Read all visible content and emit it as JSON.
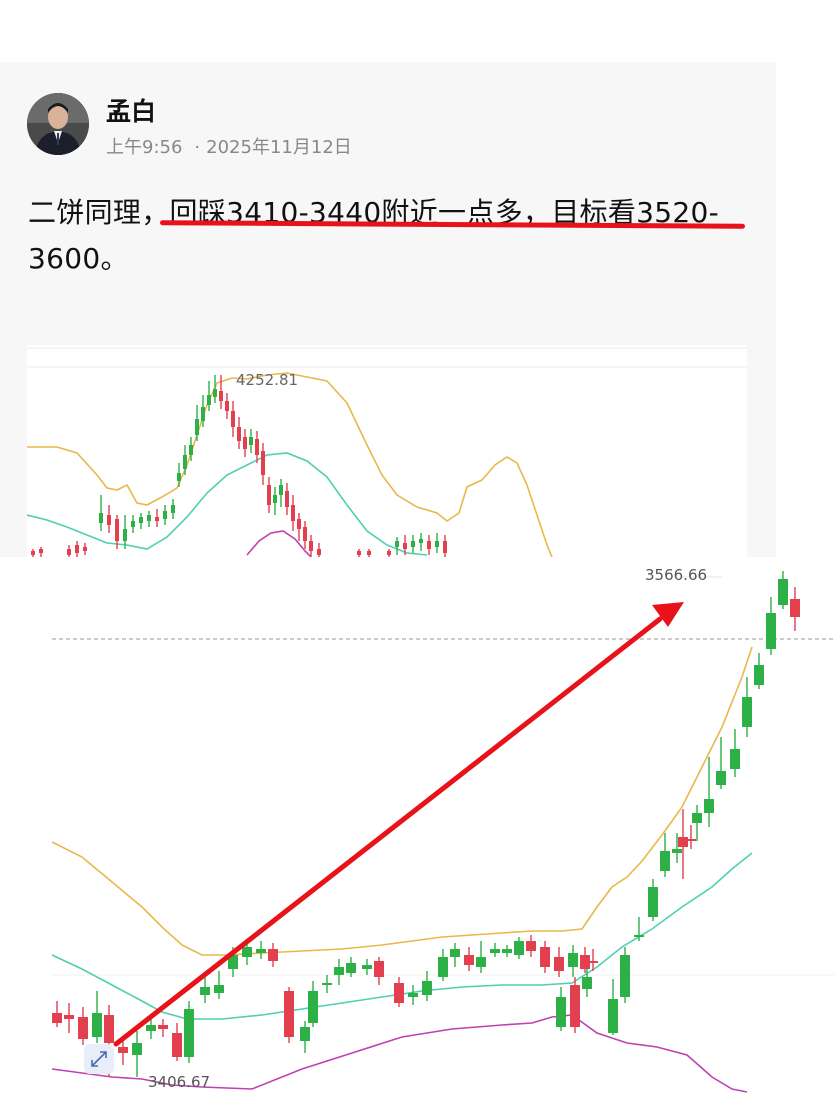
{
  "post": {
    "author": "孟白",
    "time": "上午9:56",
    "date": "2025年11月12日",
    "text_part1": "二饼同理，",
    "text_part2": "回踩3410-3440附近一点多，目标看3520-",
    "text_part3": "3600。"
  },
  "colors": {
    "up": "#2db046",
    "down": "#e2404f",
    "arrow": "#e8131a",
    "upper_band": "#e8b84a",
    "middle_band": "#4fcfb0",
    "lower_band": "#c040b0"
  },
  "chart_data": [
    {
      "type": "candlestick",
      "name": "upper-chart",
      "annotations": [
        "4252.81"
      ],
      "indicator_lines": [
        "upper band",
        "middle band",
        "lower band"
      ]
    },
    {
      "type": "candlestick",
      "name": "lower-chart",
      "annotations": [
        "3566.66",
        "3406.67"
      ],
      "high_label": "3566.66",
      "low_label": "3406.67",
      "arrow": "up-right trend from 3406.67 low toward 3566.66 high"
    }
  ]
}
